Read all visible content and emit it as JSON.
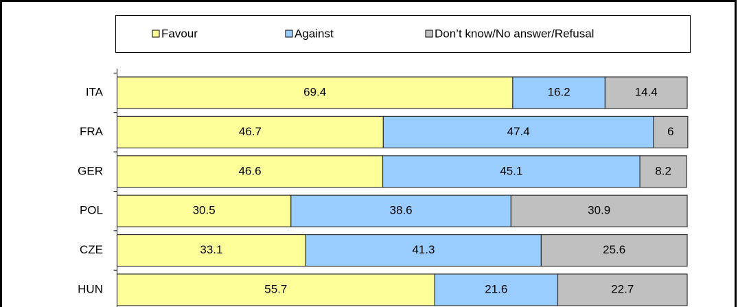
{
  "chart_data": {
    "type": "bar",
    "horizontal": true,
    "stacked": true,
    "categories": [
      "ITA",
      "FRA",
      "GER",
      "POL",
      "CZE",
      "HUN"
    ],
    "series": [
      {
        "name": "Favour",
        "color": "#ffff99",
        "values": [
          69.4,
          46.7,
          46.6,
          30.5,
          33.1,
          55.7
        ]
      },
      {
        "name": "Against",
        "color": "#99ccff",
        "values": [
          16.2,
          47.4,
          45.1,
          38.6,
          41.3,
          21.6
        ]
      },
      {
        "name": "Don’t know/No answer/Refusal",
        "color": "#c0c0c0",
        "values": [
          14.4,
          6,
          8.2,
          30.9,
          25.6,
          22.7
        ]
      }
    ],
    "xlim": [
      0,
      100
    ],
    "legend": "top"
  }
}
